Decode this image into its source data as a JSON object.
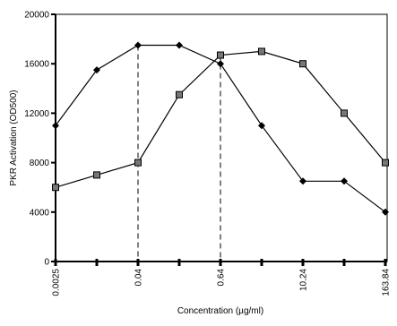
{
  "chart_data": {
    "type": "line",
    "y_label": "PKR Activation (OD500)",
    "x_label": "Concentration (µg/ml)",
    "categories": [
      "0.0025",
      null,
      "0.04",
      null,
      "0.64",
      null,
      "10.24",
      null,
      "163.84"
    ],
    "series": [
      {
        "color": "#000000",
        "marker": "diamond",
        "values": [
          11000,
          15500,
          17500,
          17500,
          16000,
          11000,
          6500,
          6500,
          4000
        ]
      },
      {
        "color": "#000000",
        "marker": "square",
        "values": [
          6000,
          7000,
          8000,
          13500,
          16700,
          17000,
          16000,
          12000,
          8000
        ]
      }
    ],
    "ylim": [
      0,
      20000
    ],
    "yticks": [
      0,
      4000,
      8000,
      12000,
      16000,
      20000
    ],
    "grid": false
  }
}
